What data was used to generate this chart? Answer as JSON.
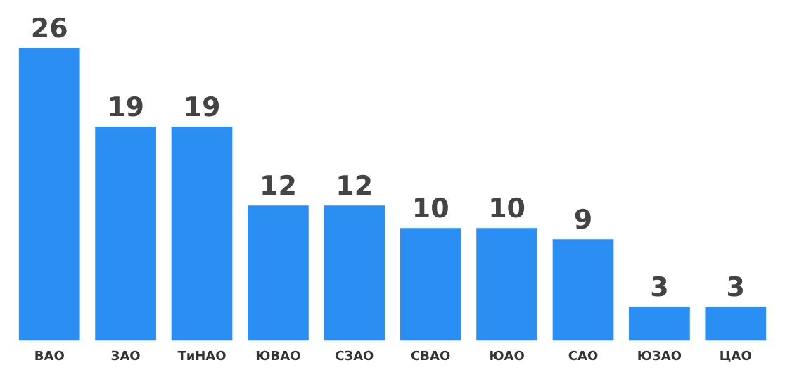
{
  "chart_data": {
    "type": "bar",
    "categories": [
      "ВАО",
      "ЗАО",
      "ТиНАО",
      "ЮВАО",
      "СЗАО",
      "СВАО",
      "ЮАО",
      "САО",
      "ЮЗАО",
      "ЦАО"
    ],
    "values": [
      26,
      19,
      19,
      12,
      12,
      10,
      10,
      9,
      3,
      3
    ],
    "color": "#2b8ef3",
    "data_labels": true,
    "grid": false,
    "legend": false
  }
}
